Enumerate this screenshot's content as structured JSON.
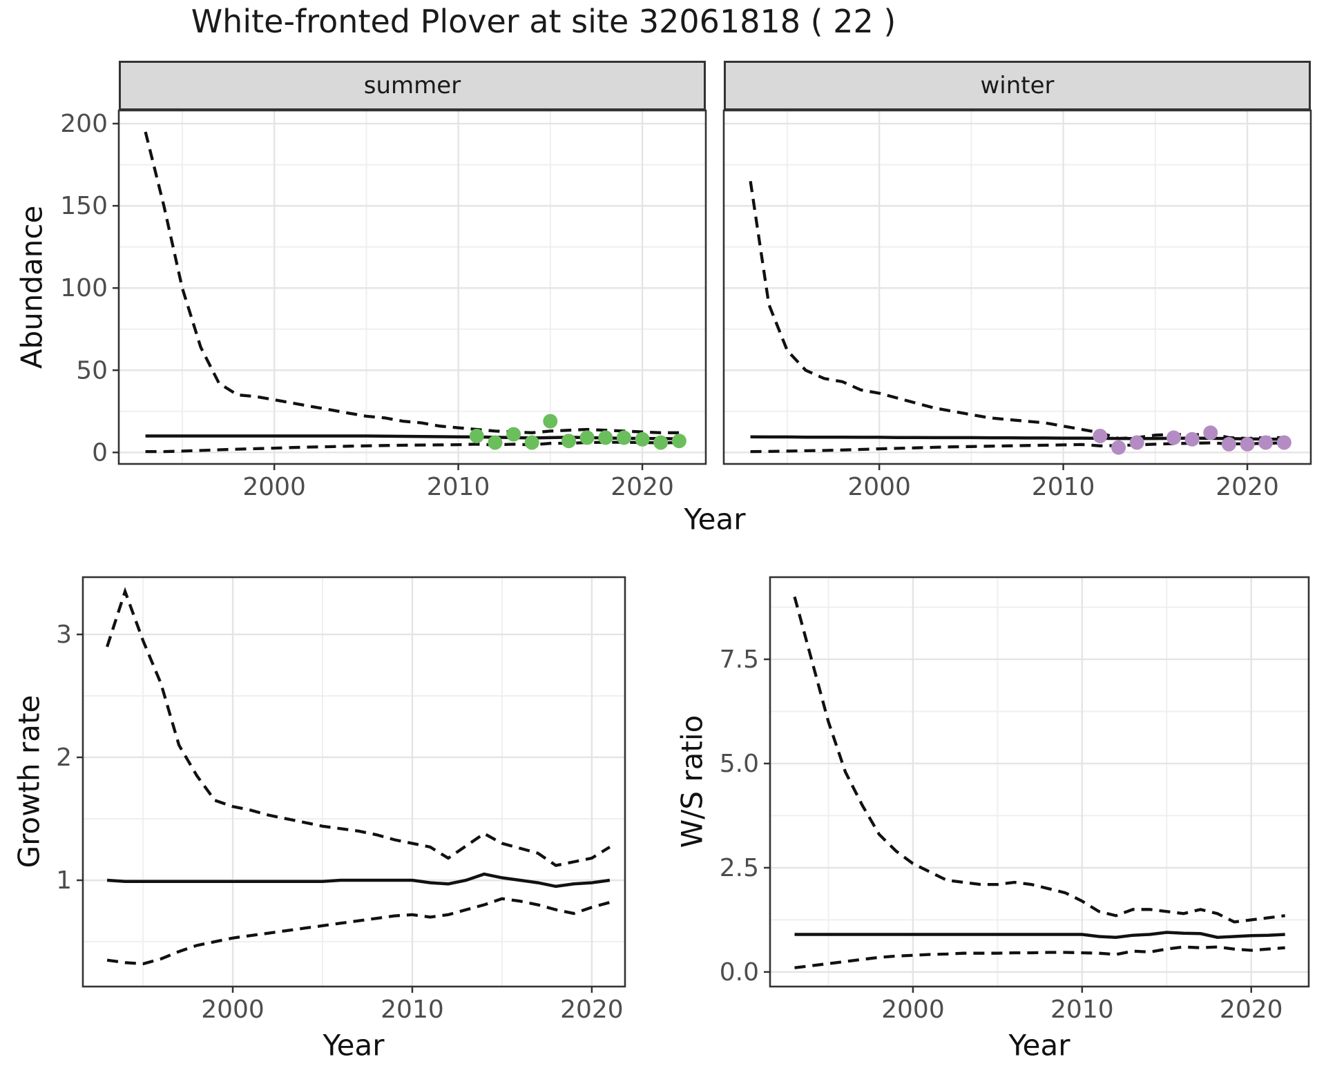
{
  "title": "White-fronted Plover at site 32061818 ( 22 )",
  "facets": [
    {
      "label": "summer"
    },
    {
      "label": "winter"
    }
  ],
  "top_row": {
    "ylabel": "Abundance",
    "xlabel": "Year"
  },
  "bottom_row": {
    "growth_ylabel": "Growth rate",
    "growth_xlabel": "Year",
    "ws_ylabel": "W/S ratio",
    "ws_xlabel": "Year"
  },
  "colors": {
    "summer_points": "#6bbe5c",
    "winter_points": "#b48cc4",
    "line": "#111111",
    "strip_bg": "#d9d9d9",
    "panel_border": "#333333",
    "grid_major": "#e4e4e4",
    "grid_minor": "#efefef",
    "tick_text": "#4d4d4d",
    "tick_mark": "#333333"
  },
  "chart_data": [
    {
      "id": "abundance_summer",
      "type": "line",
      "facet": "summer",
      "ylabel": "Abundance",
      "xlabel": "Year",
      "x_domain": [
        1991.55,
        2023.45
      ],
      "y_domain": [
        -7,
        208
      ],
      "x_ticks": [
        2000,
        2010,
        2020
      ],
      "x_tick_labels": [
        "2000",
        "2010",
        "2020"
      ],
      "x_minor": [
        1995,
        2005,
        2015
      ],
      "y_ticks": [
        0,
        50,
        100,
        150,
        200
      ],
      "y_tick_labels": [
        "0",
        "50",
        "100",
        "150",
        "200"
      ],
      "y_minor": [
        25,
        75,
        125,
        175
      ],
      "series": {
        "x_start": 1993,
        "median": [
          10,
          10,
          10,
          10,
          10,
          10,
          10,
          10,
          10,
          10,
          10,
          10,
          10,
          9.9,
          9.8,
          9.7,
          9.6,
          9.5,
          9.4,
          9.2,
          9.0,
          8.8,
          9.0,
          9.2,
          9.0,
          8.8,
          8.6,
          8.5,
          8.4,
          8.3
        ],
        "ci_upper": [
          195,
          150,
          100,
          64,
          42,
          35,
          34,
          32,
          30,
          28,
          26,
          24,
          22,
          21,
          19,
          18,
          16,
          15,
          14,
          13,
          12.5,
          12,
          13,
          13.5,
          14,
          13.5,
          13,
          12.5,
          12,
          12
        ],
        "ci_lower": [
          0.5,
          0.5,
          0.8,
          1.2,
          1.6,
          2.0,
          2.3,
          2.6,
          3.0,
          3.3,
          3.5,
          3.8,
          4.0,
          4.2,
          4.4,
          4.5,
          4.6,
          4.7,
          5.0,
          4.6,
          5.0,
          4.6,
          5.5,
          5.6,
          6.0,
          6.2,
          6.2,
          6.0,
          5.8,
          6.0
        ]
      },
      "points": {
        "years": [
          2011,
          2012,
          2013,
          2014,
          2015,
          2016,
          2017,
          2018,
          2019,
          2020,
          2021,
          2022
        ],
        "values": [
          10,
          6,
          11,
          6,
          19,
          7,
          9,
          9,
          9,
          8,
          6,
          7
        ],
        "color_key": "summer_points"
      }
    },
    {
      "id": "abundance_winter",
      "type": "line",
      "facet": "winter",
      "ylabel": "Abundance",
      "xlabel": "Year",
      "x_domain": [
        1991.55,
        2023.45
      ],
      "y_domain": [
        -7,
        208
      ],
      "x_ticks": [
        2000,
        2010,
        2020
      ],
      "x_tick_labels": [
        "2000",
        "2010",
        "2020"
      ],
      "x_minor": [
        1995,
        2005,
        2015
      ],
      "y_ticks": [
        0,
        50,
        100,
        150,
        200
      ],
      "y_tick_labels": [
        "0",
        "50",
        "100",
        "150",
        "200"
      ],
      "y_minor": [
        25,
        75,
        125,
        175
      ],
      "series": {
        "x_start": 1993,
        "median": [
          9.5,
          9.4,
          9.4,
          9.3,
          9.3,
          9.3,
          9.2,
          9.2,
          9.1,
          9.1,
          9.0,
          9.0,
          9.0,
          8.9,
          8.9,
          8.8,
          8.8,
          8.7,
          8.7,
          8.6,
          8.5,
          8.4,
          8.5,
          8.6,
          8.7,
          8.6,
          8.4,
          8.2,
          8.1,
          8.0
        ],
        "ci_upper": [
          165,
          90,
          62,
          50,
          45,
          43,
          38,
          36,
          33,
          30,
          27,
          25,
          23,
          21,
          20,
          19,
          18,
          16,
          14,
          12,
          8.5,
          9,
          10.5,
          11,
          10.5,
          11.5,
          9,
          8.5,
          9,
          9
        ],
        "ci_lower": [
          0.5,
          0.6,
          0.8,
          1.0,
          1.2,
          1.5,
          1.8,
          2.2,
          2.5,
          2.8,
          3.1,
          3.4,
          3.6,
          3.8,
          4.0,
          4.2,
          4.4,
          4.6,
          4.8,
          4.0,
          4.2,
          4.6,
          5.0,
          5.4,
          5.6,
          5.8,
          5.2,
          5.2,
          5.6,
          5.8
        ]
      },
      "points": {
        "years": [
          2012,
          2013,
          2014,
          2016,
          2017,
          2018,
          2019,
          2020,
          2021,
          2022
        ],
        "values": [
          10,
          3,
          6,
          9,
          8,
          12,
          5,
          5,
          6,
          6
        ],
        "color_key": "winter_points"
      }
    },
    {
      "id": "growth_rate",
      "type": "line",
      "facet": null,
      "ylabel": "Growth rate",
      "xlabel": "Year",
      "x_domain": [
        1991.65,
        2021.85
      ],
      "y_domain": [
        0.135,
        3.466
      ],
      "x_ticks": [
        2000,
        2010,
        2020
      ],
      "x_tick_labels": [
        "2000",
        "2010",
        "2020"
      ],
      "x_minor": [
        1995,
        2005,
        2015
      ],
      "y_ticks": [
        1,
        2,
        3
      ],
      "y_tick_labels": [
        "1",
        "2",
        "3"
      ],
      "y_minor": [
        0.5,
        1.5,
        2.5
      ],
      "series": {
        "x_start": 1993,
        "median": [
          1.0,
          0.99,
          0.99,
          0.99,
          0.99,
          0.99,
          0.99,
          0.99,
          0.99,
          0.99,
          0.99,
          0.99,
          0.99,
          1.0,
          1.0,
          1.0,
          1.0,
          1.0,
          0.98,
          0.97,
          1.0,
          1.05,
          1.02,
          1.0,
          0.98,
          0.95,
          0.97,
          0.98,
          1.0
        ],
        "ci_upper": [
          2.9,
          3.35,
          2.95,
          2.6,
          2.1,
          1.85,
          1.65,
          1.6,
          1.57,
          1.53,
          1.5,
          1.47,
          1.44,
          1.42,
          1.4,
          1.37,
          1.33,
          1.3,
          1.27,
          1.18,
          1.28,
          1.38,
          1.3,
          1.26,
          1.22,
          1.12,
          1.15,
          1.18,
          1.27
        ],
        "ci_lower": [
          0.35,
          0.33,
          0.32,
          0.36,
          0.42,
          0.47,
          0.5,
          0.53,
          0.55,
          0.57,
          0.59,
          0.61,
          0.63,
          0.65,
          0.67,
          0.69,
          0.71,
          0.72,
          0.7,
          0.72,
          0.76,
          0.8,
          0.85,
          0.83,
          0.8,
          0.76,
          0.73,
          0.78,
          0.82
        ]
      },
      "points": null
    },
    {
      "id": "ws_ratio",
      "type": "line",
      "facet": null,
      "ylabel": "W/S ratio",
      "xlabel": "Year",
      "x_domain": [
        1991.55,
        2023.4
      ],
      "y_domain": [
        -0.35,
        9.47
      ],
      "x_ticks": [
        2000,
        2010,
        2020
      ],
      "x_tick_labels": [
        "2000",
        "2010",
        "2020"
      ],
      "x_minor": [
        1995,
        2005,
        2015
      ],
      "y_ticks": [
        0,
        2.5,
        5,
        7.5
      ],
      "y_tick_labels": [
        "0.0",
        "2.5",
        "5.0",
        "7.5"
      ],
      "y_minor": [
        1.25,
        3.75,
        6.25,
        8.75
      ],
      "series": {
        "x_start": 1993,
        "median": [
          0.9,
          0.9,
          0.9,
          0.9,
          0.9,
          0.9,
          0.9,
          0.9,
          0.9,
          0.9,
          0.9,
          0.9,
          0.9,
          0.9,
          0.9,
          0.9,
          0.9,
          0.9,
          0.85,
          0.83,
          0.88,
          0.9,
          0.95,
          0.93,
          0.92,
          0.83,
          0.85,
          0.87,
          0.88,
          0.9
        ],
        "ci_upper": [
          9.0,
          7.5,
          6.0,
          4.8,
          4.0,
          3.3,
          2.9,
          2.6,
          2.4,
          2.2,
          2.15,
          2.1,
          2.1,
          2.15,
          2.1,
          2.0,
          1.9,
          1.7,
          1.45,
          1.35,
          1.5,
          1.5,
          1.45,
          1.4,
          1.5,
          1.4,
          1.2,
          1.25,
          1.3,
          1.35
        ],
        "ci_lower": [
          0.1,
          0.15,
          0.2,
          0.25,
          0.3,
          0.35,
          0.38,
          0.4,
          0.42,
          0.43,
          0.45,
          0.45,
          0.45,
          0.46,
          0.46,
          0.47,
          0.47,
          0.46,
          0.45,
          0.42,
          0.5,
          0.48,
          0.55,
          0.6,
          0.58,
          0.6,
          0.55,
          0.52,
          0.55,
          0.58
        ]
      },
      "points": null
    }
  ]
}
